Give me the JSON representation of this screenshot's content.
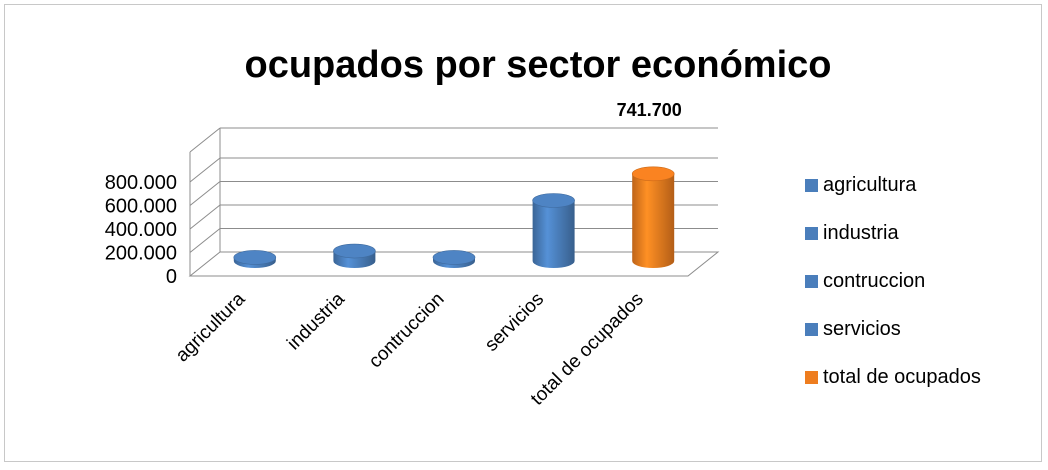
{
  "chart_data": {
    "type": "bar",
    "title": "ocupados por sector económico",
    "categories": [
      "agricultura",
      "industria",
      "contruccion",
      "servicios",
      "total de ocupados"
    ],
    "values": [
      30000,
      85000,
      30000,
      515000,
      741700
    ],
    "colors": [
      "#4a7ebb",
      "#4a7ebb",
      "#4a7ebb",
      "#4a7ebb",
      "#ee7d1f"
    ],
    "data_labels": [
      "",
      "",
      "",
      "",
      "741.700"
    ],
    "yticks": [
      "0",
      "200.000",
      "400.000",
      "600.000",
      "800.000"
    ],
    "ylim": [
      0,
      800000
    ],
    "grid": true,
    "three_d": true,
    "bar_shape": "cylinder",
    "legend": {
      "position": "right",
      "entries": [
        "agricultura",
        "industria",
        "contruccion",
        "servicios",
        "total de ocupados"
      ]
    }
  }
}
